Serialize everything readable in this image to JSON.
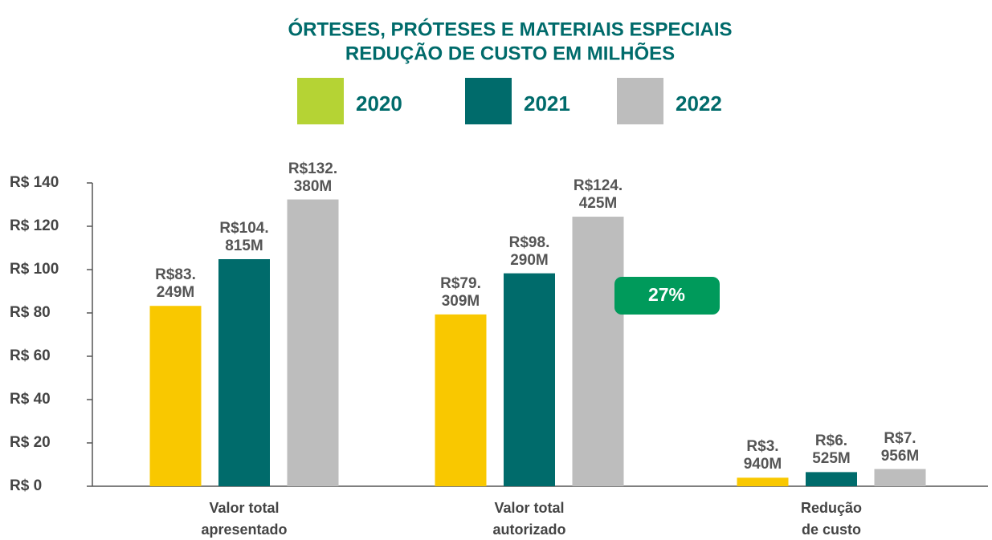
{
  "chart_data": {
    "type": "bar",
    "title": [
      "ÓRTESES, PRÓTESES E MATERIAIS ESPECIAIS",
      "REDUÇÃO DE CUSTO EM MILHÕES"
    ],
    "categories": [
      "Valor total\napresentado",
      "Valor total\nautorizado",
      "Redução\nde custo"
    ],
    "series": [
      {
        "name": "2020",
        "color": "#f9c800",
        "legend_color": "#b5d334",
        "values": [
          83.249,
          79.309,
          3.94
        ],
        "value_labels": [
          "R$83.\n249M",
          "R$79.\n309M",
          "R$3.\n940M"
        ]
      },
      {
        "name": "2021",
        "color": "#006b6b",
        "legend_color": "#006b6b",
        "values": [
          104.815,
          98.29,
          6.525
        ],
        "value_labels": [
          "R$104.\n815M",
          "R$98.\n290M",
          "R$6.\n525M"
        ]
      },
      {
        "name": "2022",
        "color": "#bdbdbd",
        "legend_color": "#bdbdbd",
        "values": [
          132.38,
          124.425,
          7.956
        ],
        "value_labels": [
          "R$132.\n380M",
          "R$124.\n425M",
          "R$7.\n956M"
        ]
      }
    ],
    "ylim": [
      0,
      140
    ],
    "yticks": [
      {
        "value": 0,
        "label": "R$ 0"
      },
      {
        "value": 20,
        "label": "R$ 20"
      },
      {
        "value": 40,
        "label": "R$ 40"
      },
      {
        "value": 60,
        "label": "R$ 60"
      },
      {
        "value": 80,
        "label": "R$ 80"
      },
      {
        "value": 100,
        "label": "R$ 100"
      },
      {
        "value": 120,
        "label": "R$ 120"
      },
      {
        "value": 140,
        "label": "R$ 140"
      }
    ],
    "annotation": "27%",
    "annotation_color": "#009a5b"
  }
}
